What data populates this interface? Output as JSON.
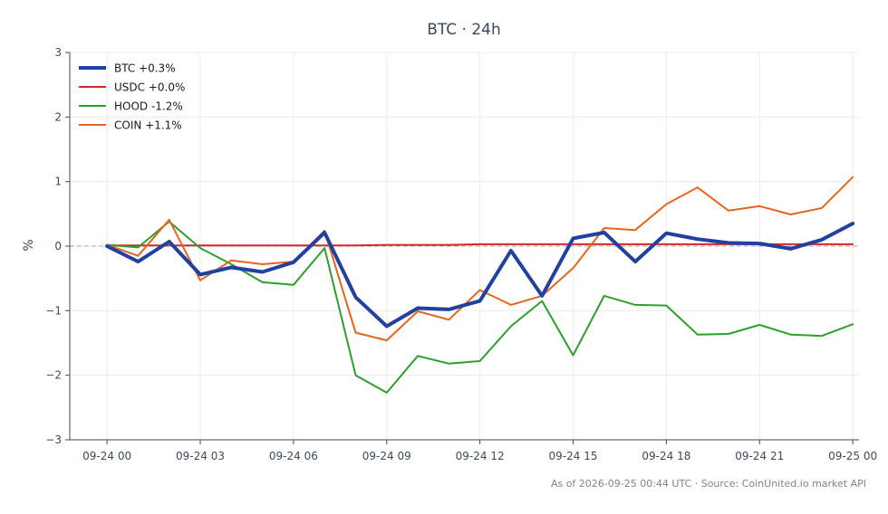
{
  "chart_data": {
    "type": "line",
    "title": "BTC · 24h",
    "xlabel": "",
    "ylabel": "%",
    "ylim": [
      -3,
      3
    ],
    "yticks": [
      3,
      2,
      1,
      0,
      -1,
      -2,
      -3
    ],
    "ytick_labels": [
      "3",
      "2",
      "1",
      "0",
      "−1",
      "−2",
      "−3"
    ],
    "xlim": [
      -1.2,
      24.2
    ],
    "xticks": [
      0,
      3,
      6,
      9,
      12,
      15,
      18,
      21,
      24
    ],
    "xtick_labels": [
      "09-24 00",
      "09-24 03",
      "09-24 06",
      "09-24 09",
      "09-24 12",
      "09-24 15",
      "09-24 18",
      "09-24 21",
      "09-25 00"
    ],
    "grid": true,
    "zero_line": true,
    "legend_position": "top-left",
    "footnote": "As of 2026-09-25 00:44 UTC · Source: CoinUnited.io market API",
    "x": [
      0,
      1,
      2,
      3,
      4,
      5,
      6,
      7,
      8,
      9,
      10,
      11,
      12,
      13,
      14,
      15,
      16,
      17,
      18,
      19,
      20,
      21,
      22,
      23,
      24
    ],
    "series": [
      {
        "name": "USDC +0.0%",
        "color": "#d62728",
        "width": 2,
        "values": [
          0.01,
          0.01,
          0.01,
          0.01,
          0.01,
          0.01,
          0.01,
          0.01,
          0.01,
          0.02,
          0.02,
          0.02,
          0.03,
          0.03,
          0.03,
          0.03,
          0.03,
          0.03,
          0.03,
          0.03,
          0.03,
          0.03,
          0.03,
          0.03,
          0.03
        ]
      },
      {
        "name": "HOOD -1.2%",
        "color": "#2ca02c",
        "width": 2,
        "values": [
          0.02,
          -0.02,
          0.38,
          -0.03,
          -0.28,
          -0.56,
          -0.6,
          -0.03,
          -2.0,
          -2.27,
          -1.7,
          -1.82,
          -1.78,
          -1.24,
          -0.85,
          -1.69,
          -0.77,
          -0.91,
          -0.92,
          -1.37,
          -1.36,
          -1.22,
          -1.37,
          -1.39,
          -1.21
        ]
      },
      {
        "name": "COIN +1.1%",
        "color": "#e8641b",
        "width": 2,
        "values": [
          0.02,
          -0.15,
          0.41,
          -0.53,
          -0.22,
          -0.28,
          -0.24,
          0.24,
          -1.34,
          -1.46,
          -1.01,
          -1.14,
          -0.68,
          -0.91,
          -0.77,
          -0.34,
          0.28,
          0.25,
          0.65,
          0.91,
          0.55,
          0.62,
          0.49,
          0.59,
          1.07
        ]
      },
      {
        "name": "BTC +0.3%",
        "color": "#2140a0",
        "width": 4,
        "values": [
          0.0,
          -0.24,
          0.07,
          -0.44,
          -0.33,
          -0.4,
          -0.25,
          0.21,
          -0.79,
          -1.24,
          -0.96,
          -0.98,
          -0.85,
          -0.07,
          -0.77,
          0.12,
          0.21,
          -0.24,
          0.2,
          0.11,
          0.05,
          0.04,
          -0.04,
          0.1,
          0.35
        ]
      }
    ],
    "legend_order": [
      "BTC +0.3%",
      "USDC +0.0%",
      "HOOD -1.2%",
      "COIN +1.1%"
    ]
  }
}
